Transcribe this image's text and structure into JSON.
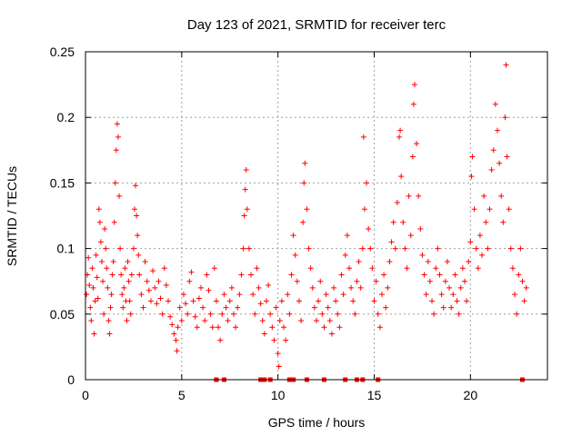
{
  "chart_data": {
    "type": "scatter",
    "title": "Day 123 of 2021, SRMTID for receiver terc",
    "xlabel": "GPS time / hours",
    "ylabel": "SRMTID / TECUs",
    "xlim": [
      0,
      24
    ],
    "ylim": [
      0,
      0.25
    ],
    "x_ticks": [
      0,
      5,
      10,
      15,
      20
    ],
    "x_tick_labels": [
      "0",
      "5",
      "10",
      "15",
      "20"
    ],
    "y_ticks": [
      0,
      0.05,
      0.1,
      0.15,
      0.2,
      0.25
    ],
    "y_tick_labels": [
      "0",
      "0.05",
      "0.1",
      "0.15",
      "0.2",
      "0.25"
    ],
    "grid": true,
    "marker": "+",
    "series_color": "#ff0000",
    "series": [
      {
        "name": "SRMTID",
        "points": [
          [
            0.05,
            0.065
          ],
          [
            0.1,
            0.08
          ],
          [
            0.15,
            0.093
          ],
          [
            0.2,
            0.072
          ],
          [
            0.25,
            0.055
          ],
          [
            0.3,
            0.045
          ],
          [
            0.35,
            0.085
          ],
          [
            0.4,
            0.07
          ],
          [
            0.45,
            0.035
          ],
          [
            0.5,
            0.06
          ],
          [
            0.55,
            0.095
          ],
          [
            0.6,
            0.078
          ],
          [
            0.65,
            0.062
          ],
          [
            0.7,
            0.13
          ],
          [
            0.75,
            0.12
          ],
          [
            0.8,
            0.105
          ],
          [
            0.85,
            0.09
          ],
          [
            0.9,
            0.075
          ],
          [
            0.95,
            0.05
          ],
          [
            1.0,
            0.115
          ],
          [
            1.05,
            0.1
          ],
          [
            1.1,
            0.085
          ],
          [
            1.15,
            0.07
          ],
          [
            1.2,
            0.045
          ],
          [
            1.25,
            0.035
          ],
          [
            1.3,
            0.055
          ],
          [
            1.35,
            0.065
          ],
          [
            1.4,
            0.08
          ],
          [
            1.45,
            0.09
          ],
          [
            1.5,
            0.12
          ],
          [
            1.55,
            0.15
          ],
          [
            1.6,
            0.175
          ],
          [
            1.65,
            0.195
          ],
          [
            1.7,
            0.185
          ],
          [
            1.75,
            0.14
          ],
          [
            1.8,
            0.1
          ],
          [
            1.85,
            0.08
          ],
          [
            1.9,
            0.065
          ],
          [
            1.95,
            0.055
          ],
          [
            2.0,
            0.07
          ],
          [
            2.05,
            0.085
          ],
          [
            2.1,
            0.06
          ],
          [
            2.15,
            0.045
          ],
          [
            2.2,
            0.09
          ],
          [
            2.25,
            0.075
          ],
          [
            2.3,
            0.06
          ],
          [
            2.35,
            0.05
          ],
          [
            2.4,
            0.08
          ],
          [
            2.5,
            0.1
          ],
          [
            2.55,
            0.13
          ],
          [
            2.6,
            0.148
          ],
          [
            2.65,
            0.125
          ],
          [
            2.7,
            0.11
          ],
          [
            2.75,
            0.095
          ],
          [
            2.8,
            0.08
          ],
          [
            2.9,
            0.065
          ],
          [
            3.0,
            0.055
          ],
          [
            3.1,
            0.09
          ],
          [
            3.2,
            0.075
          ],
          [
            3.3,
            0.068
          ],
          [
            3.4,
            0.06
          ],
          [
            3.5,
            0.083
          ],
          [
            3.6,
            0.07
          ],
          [
            3.7,
            0.058
          ],
          [
            3.8,
            0.075
          ],
          [
            3.9,
            0.062
          ],
          [
            4.0,
            0.05
          ],
          [
            4.1,
            0.085
          ],
          [
            4.2,
            0.072
          ],
          [
            4.3,
            0.06
          ],
          [
            4.4,
            0.048
          ],
          [
            4.5,
            0.042
          ],
          [
            4.6,
            0.035
          ],
          [
            4.7,
            0.03
          ],
          [
            4.75,
            0.022
          ],
          [
            4.8,
            0.04
          ],
          [
            4.9,
            0.055
          ],
          [
            5.0,
            0.045
          ],
          [
            5.1,
            0.065
          ],
          [
            5.2,
            0.058
          ],
          [
            5.3,
            0.05
          ],
          [
            5.4,
            0.075
          ],
          [
            5.5,
            0.082
          ],
          [
            5.6,
            0.06
          ],
          [
            5.7,
            0.048
          ],
          [
            5.8,
            0.04
          ],
          [
            5.9,
            0.062
          ],
          [
            6.0,
            0.07
          ],
          [
            6.1,
            0.055
          ],
          [
            6.2,
            0.045
          ],
          [
            6.3,
            0.08
          ],
          [
            6.4,
            0.068
          ],
          [
            6.5,
            0.05
          ],
          [
            6.6,
            0.04
          ],
          [
            6.7,
            0.085
          ],
          [
            6.8,
            0.06
          ],
          [
            6.9,
            0.04
          ],
          [
            7.0,
            0.03
          ],
          [
            7.1,
            0.05
          ],
          [
            7.2,
            0.065
          ],
          [
            7.3,
            0.055
          ],
          [
            7.4,
            0.045
          ],
          [
            7.5,
            0.06
          ],
          [
            7.6,
            0.07
          ],
          [
            7.7,
            0.05
          ],
          [
            7.8,
            0.04
          ],
          [
            7.9,
            0.055
          ],
          [
            8.0,
            0.065
          ],
          [
            8.1,
            0.08
          ],
          [
            8.2,
            0.1
          ],
          [
            8.25,
            0.125
          ],
          [
            8.3,
            0.145
          ],
          [
            8.35,
            0.16
          ],
          [
            8.4,
            0.13
          ],
          [
            8.5,
            0.1
          ],
          [
            8.6,
            0.08
          ],
          [
            8.7,
            0.065
          ],
          [
            8.8,
            0.05
          ],
          [
            8.9,
            0.085
          ],
          [
            9.0,
            0.07
          ],
          [
            9.1,
            0.058
          ],
          [
            9.2,
            0.045
          ],
          [
            9.3,
            0.035
          ],
          [
            9.4,
            0.06
          ],
          [
            9.5,
            0.072
          ],
          [
            9.6,
            0.05
          ],
          [
            9.7,
            0.04
          ],
          [
            9.8,
            0.03
          ],
          [
            9.9,
            0.055
          ],
          [
            10.0,
            0.02
          ],
          [
            10.05,
            0.01
          ],
          [
            10.1,
            0.045
          ],
          [
            10.2,
            0.06
          ],
          [
            10.3,
            0.04
          ],
          [
            10.4,
            0.03
          ],
          [
            10.5,
            0.065
          ],
          [
            10.6,
            0.05
          ],
          [
            10.7,
            0.08
          ],
          [
            10.8,
            0.11
          ],
          [
            10.9,
            0.095
          ],
          [
            11.0,
            0.075
          ],
          [
            11.1,
            0.06
          ],
          [
            11.2,
            0.045
          ],
          [
            11.3,
            0.12
          ],
          [
            11.35,
            0.15
          ],
          [
            11.4,
            0.165
          ],
          [
            11.5,
            0.13
          ],
          [
            11.6,
            0.1
          ],
          [
            11.7,
            0.085
          ],
          [
            11.8,
            0.07
          ],
          [
            11.9,
            0.055
          ],
          [
            12.0,
            0.045
          ],
          [
            12.1,
            0.06
          ],
          [
            12.2,
            0.075
          ],
          [
            12.3,
            0.05
          ],
          [
            12.4,
            0.04
          ],
          [
            12.5,
            0.065
          ],
          [
            12.6,
            0.055
          ],
          [
            12.7,
            0.045
          ],
          [
            12.8,
            0.035
          ],
          [
            12.9,
            0.07
          ],
          [
            13.0,
            0.06
          ],
          [
            13.1,
            0.05
          ],
          [
            13.2,
            0.04
          ],
          [
            13.3,
            0.08
          ],
          [
            13.4,
            0.065
          ],
          [
            13.5,
            0.095
          ],
          [
            13.6,
            0.11
          ],
          [
            13.7,
            0.085
          ],
          [
            13.8,
            0.07
          ],
          [
            13.9,
            0.06
          ],
          [
            14.0,
            0.05
          ],
          [
            14.1,
            0.075
          ],
          [
            14.2,
            0.09
          ],
          [
            14.3,
            0.07
          ],
          [
            14.4,
            0.1
          ],
          [
            14.45,
            0.185
          ],
          [
            14.5,
            0.13
          ],
          [
            14.6,
            0.15
          ],
          [
            14.7,
            0.115
          ],
          [
            14.8,
            0.1
          ],
          [
            14.9,
            0.085
          ],
          [
            15.0,
            0.06
          ],
          [
            15.1,
            0.075
          ],
          [
            15.2,
            0.05
          ],
          [
            15.3,
            0.04
          ],
          [
            15.4,
            0.065
          ],
          [
            15.5,
            0.08
          ],
          [
            15.6,
            0.055
          ],
          [
            15.7,
            0.07
          ],
          [
            15.8,
            0.09
          ],
          [
            15.9,
            0.105
          ],
          [
            16.0,
            0.12
          ],
          [
            16.1,
            0.1
          ],
          [
            16.2,
            0.135
          ],
          [
            16.3,
            0.185
          ],
          [
            16.35,
            0.19
          ],
          [
            16.4,
            0.155
          ],
          [
            16.5,
            0.12
          ],
          [
            16.6,
            0.1
          ],
          [
            16.7,
            0.085
          ],
          [
            16.8,
            0.14
          ],
          [
            16.9,
            0.11
          ],
          [
            17.0,
            0.17
          ],
          [
            17.05,
            0.21
          ],
          [
            17.1,
            0.225
          ],
          [
            17.2,
            0.18
          ],
          [
            17.3,
            0.14
          ],
          [
            17.4,
            0.115
          ],
          [
            17.5,
            0.095
          ],
          [
            17.6,
            0.08
          ],
          [
            17.7,
            0.065
          ],
          [
            17.8,
            0.09
          ],
          [
            17.9,
            0.075
          ],
          [
            18.0,
            0.06
          ],
          [
            18.1,
            0.05
          ],
          [
            18.2,
            0.085
          ],
          [
            18.3,
            0.1
          ],
          [
            18.4,
            0.08
          ],
          [
            18.5,
            0.065
          ],
          [
            18.6,
            0.055
          ],
          [
            18.7,
            0.075
          ],
          [
            18.8,
            0.09
          ],
          [
            18.9,
            0.07
          ],
          [
            19.0,
            0.055
          ],
          [
            19.1,
            0.065
          ],
          [
            19.2,
            0.08
          ],
          [
            19.3,
            0.06
          ],
          [
            19.4,
            0.05
          ],
          [
            19.5,
            0.07
          ],
          [
            19.6,
            0.085
          ],
          [
            19.7,
            0.075
          ],
          [
            19.8,
            0.06
          ],
          [
            19.9,
            0.09
          ],
          [
            20.0,
            0.105
          ],
          [
            20.05,
            0.155
          ],
          [
            20.1,
            0.17
          ],
          [
            20.2,
            0.13
          ],
          [
            20.3,
            0.1
          ],
          [
            20.4,
            0.085
          ],
          [
            20.5,
            0.11
          ],
          [
            20.6,
            0.095
          ],
          [
            20.7,
            0.14
          ],
          [
            20.8,
            0.12
          ],
          [
            20.9,
            0.1
          ],
          [
            21.0,
            0.13
          ],
          [
            21.1,
            0.16
          ],
          [
            21.2,
            0.175
          ],
          [
            21.3,
            0.21
          ],
          [
            21.4,
            0.19
          ],
          [
            21.5,
            0.165
          ],
          [
            21.6,
            0.14
          ],
          [
            21.7,
            0.12
          ],
          [
            21.8,
            0.2
          ],
          [
            21.85,
            0.24
          ],
          [
            21.9,
            0.17
          ],
          [
            22.0,
            0.13
          ],
          [
            22.1,
            0.1
          ],
          [
            22.2,
            0.085
          ],
          [
            22.3,
            0.065
          ],
          [
            22.4,
            0.05
          ],
          [
            22.5,
            0.08
          ],
          [
            22.6,
            0.1
          ],
          [
            22.7,
            0.075
          ],
          [
            22.8,
            0.06
          ],
          [
            22.9,
            0.07
          ]
        ]
      }
    ],
    "gap_markers_x": [
      6.8,
      7.2,
      9.1,
      9.3,
      9.6,
      10.6,
      10.8,
      11.5,
      12.4,
      13.5,
      14.1,
      14.4,
      15.2,
      22.7
    ]
  }
}
